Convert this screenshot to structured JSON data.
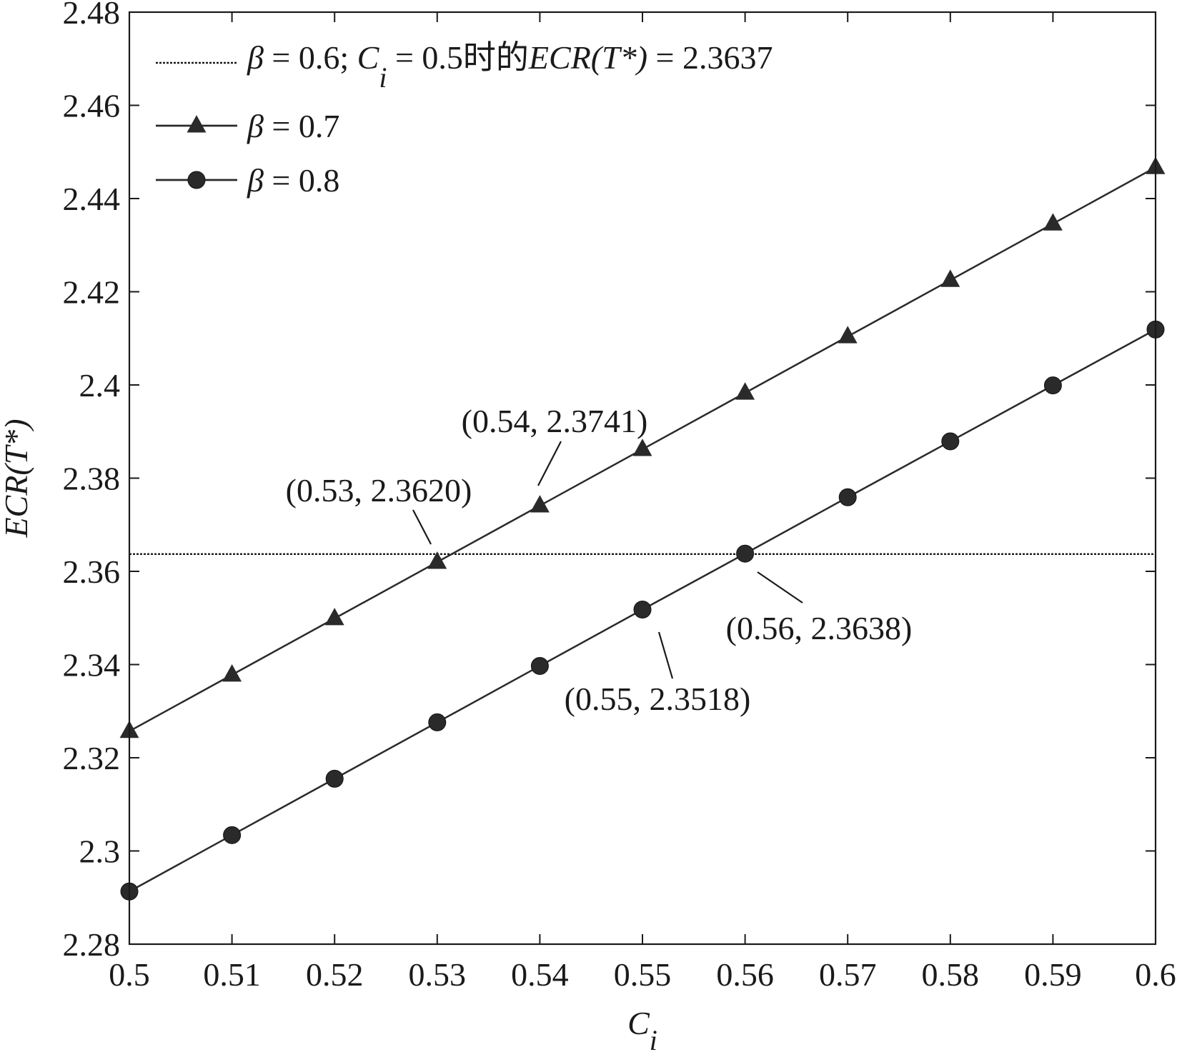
{
  "chart_data": {
    "type": "line",
    "xlabel": "C",
    "xlabel_sub": "i",
    "ylabel": "ECR(T*)",
    "xlim": [
      0.5,
      0.6
    ],
    "ylim": [
      2.28,
      2.48
    ],
    "xticks": [
      "0.5",
      "0.51",
      "0.52",
      "0.53",
      "0.54",
      "0.55",
      "0.56",
      "0.57",
      "0.58",
      "0.59",
      "0.6"
    ],
    "yticks": [
      "2.28",
      "2.3",
      "2.32",
      "2.34",
      "2.36",
      "2.38",
      "2.4",
      "2.42",
      "2.44",
      "2.46",
      "2.48"
    ],
    "grid": false,
    "legend_position": "top-left",
    "reference_line": {
      "y": 2.3637,
      "style": "dotted",
      "legend_parts": [
        "β",
        " = 0.6; ",
        "C",
        "i",
        " = 0.5时的",
        "ECR(T*)",
        " = 2.3637"
      ]
    },
    "x": [
      0.5,
      0.51,
      0.52,
      0.53,
      0.54,
      0.55,
      0.56,
      0.57,
      0.58,
      0.59,
      0.6
    ],
    "series": [
      {
        "name_parts": [
          "β",
          " = 0.7"
        ],
        "marker": "triangle",
        "values": [
          2.3257,
          2.3378,
          2.3499,
          2.362,
          2.3741,
          2.3862,
          2.3983,
          2.4104,
          2.4225,
          2.4346,
          2.4467
        ]
      },
      {
        "name_parts": [
          "β",
          " = 0.8"
        ],
        "marker": "circle",
        "values": [
          2.2913,
          2.3034,
          2.3155,
          2.3276,
          2.3397,
          2.3518,
          2.3638,
          2.3759,
          2.3879,
          2.3999,
          2.4119
        ]
      }
    ],
    "annotations": [
      {
        "text": "(0.53, 2.3620)",
        "x": 0.53,
        "y": 2.362
      },
      {
        "text": "(0.54, 2.3741)",
        "x": 0.54,
        "y": 2.3741
      },
      {
        "text": "(0.56, 2.3638)",
        "x": 0.56,
        "y": 2.3638
      },
      {
        "text": "(0.55, 2.3518)",
        "x": 0.55,
        "y": 2.3518
      }
    ],
    "colors": {
      "line": "#2a2a2a",
      "marker": "#2a2a2a",
      "axis": "#1a1a1a"
    }
  }
}
